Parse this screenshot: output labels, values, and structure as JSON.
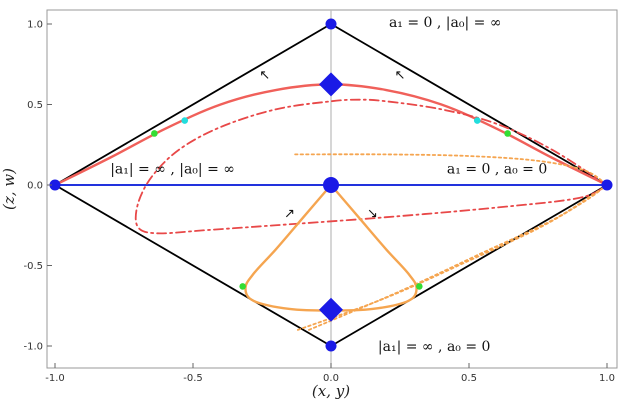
{
  "chart_data": {
    "type": "line",
    "xlabel": "(x, y)",
    "ylabel": "(z, w)",
    "xlim": [
      -1.05,
      1.05
    ],
    "ylim": [
      -1.08,
      1.08
    ],
    "x_ticks": [
      "-1.0",
      "-0.5",
      "0.0",
      "0.5",
      "1.0"
    ],
    "y_ticks": [
      "-1.0",
      "-0.5",
      "0.0",
      "0.5",
      "1.0"
    ],
    "grid": false,
    "reference_lines": {
      "vertical_x": 0.0,
      "color": "#bbbbbb"
    },
    "frame": {
      "name": "boundary",
      "color": "#000000",
      "points": [
        [
          0,
          1
        ],
        [
          1,
          0
        ],
        [
          0,
          -1
        ],
        [
          -1,
          0
        ],
        [
          0,
          1
        ]
      ]
    },
    "axis_line": {
      "name": "horizontal-axis-line",
      "color": "#2233dd",
      "points": [
        [
          -1,
          0
        ],
        [
          1,
          0
        ]
      ]
    },
    "series": [
      {
        "key": "red_solid",
        "color": "#f0605a",
        "style": "solid",
        "points": [
          [
            -1,
            0
          ],
          [
            -0.8,
            0.17
          ],
          [
            -0.6,
            0.35
          ],
          [
            -0.4,
            0.5
          ],
          [
            -0.2,
            0.59
          ],
          [
            0,
            0.625
          ],
          [
            0.2,
            0.59
          ],
          [
            0.4,
            0.5
          ],
          [
            0.6,
            0.35
          ],
          [
            0.8,
            0.17
          ],
          [
            1,
            0
          ]
        ]
      },
      {
        "key": "red_dashdot",
        "color": "#e84848",
        "style": "dashdot",
        "points": [
          [
            1,
            0
          ],
          [
            0.8,
            0.22
          ],
          [
            0.6,
            0.38
          ],
          [
            0.4,
            0.47
          ],
          [
            0.2,
            0.52
          ],
          [
            0.1,
            0.53
          ],
          [
            0,
            0.52
          ],
          [
            -0.2,
            0.47
          ],
          [
            -0.4,
            0.36
          ],
          [
            -0.55,
            0.22
          ],
          [
            -0.65,
            0.05
          ],
          [
            -0.7,
            -0.12
          ],
          [
            -0.7,
            -0.26
          ],
          [
            -0.63,
            -0.3
          ],
          [
            -0.45,
            -0.28
          ],
          [
            -0.2,
            -0.25
          ],
          [
            0.2,
            -0.2
          ],
          [
            0.6,
            -0.14
          ],
          [
            0.9,
            -0.08
          ],
          [
            1,
            0
          ]
        ]
      },
      {
        "key": "orange_solid",
        "color": "#f5a550",
        "style": "solid",
        "points": [
          [
            0,
            0
          ],
          [
            -0.1,
            -0.2
          ],
          [
            -0.2,
            -0.4
          ],
          [
            -0.28,
            -0.55
          ],
          [
            -0.31,
            -0.64
          ],
          [
            -0.28,
            -0.72
          ],
          [
            -0.15,
            -0.77
          ],
          [
            0,
            -0.78
          ],
          [
            0.15,
            -0.77
          ],
          [
            0.28,
            -0.72
          ],
          [
            0.31,
            -0.64
          ],
          [
            0.28,
            -0.55
          ],
          [
            0.2,
            -0.4
          ],
          [
            0.1,
            -0.2
          ],
          [
            0,
            0
          ]
        ]
      },
      {
        "key": "orange_dotted_upper",
        "color": "#f5a550",
        "style": "dotted",
        "points": [
          [
            -0.13,
            0.19
          ],
          [
            0.2,
            0.19
          ],
          [
            0.5,
            0.18
          ],
          [
            0.75,
            0.15
          ],
          [
            0.92,
            0.09
          ],
          [
            1,
            0
          ]
        ]
      },
      {
        "key": "orange_dotted_lower_a",
        "color": "#f5a550",
        "style": "dotted",
        "points": [
          [
            -0.12,
            -0.9
          ],
          [
            0.2,
            -0.7
          ],
          [
            0.5,
            -0.47
          ],
          [
            0.75,
            -0.27
          ],
          [
            0.92,
            -0.1
          ],
          [
            1,
            0
          ]
        ]
      },
      {
        "key": "orange_dotted_lower_b",
        "color": "#f5a550",
        "style": "dotted",
        "points": [
          [
            -0.08,
            -0.9
          ],
          [
            0.25,
            -0.66
          ],
          [
            0.55,
            -0.42
          ],
          [
            0.8,
            -0.22
          ],
          [
            0.94,
            -0.07
          ],
          [
            1,
            0
          ]
        ]
      }
    ],
    "points": [
      {
        "x": 0,
        "y": 1,
        "color": "#1a1ae6",
        "shape": "circle",
        "size": "small"
      },
      {
        "x": 0,
        "y": -1,
        "color": "#1a1ae6",
        "shape": "circle",
        "size": "small"
      },
      {
        "x": -1,
        "y": 0,
        "color": "#1a1ae6",
        "shape": "circle",
        "size": "small"
      },
      {
        "x": 1,
        "y": 0,
        "color": "#1a1ae6",
        "shape": "circle",
        "size": "small"
      },
      {
        "x": 0,
        "y": 0,
        "color": "#1a1ae6",
        "shape": "circle",
        "size": "large"
      },
      {
        "x": 0,
        "y": 0.625,
        "color": "#1a1ae6",
        "shape": "diamond",
        "size": "large"
      },
      {
        "x": 0,
        "y": -0.775,
        "color": "#1a1ae6",
        "shape": "diamond",
        "size": "large"
      },
      {
        "x": -0.64,
        "y": 0.32,
        "color": "#33dd33",
        "shape": "circle",
        "size": "tiny"
      },
      {
        "x": 0.64,
        "y": 0.32,
        "color": "#33dd33",
        "shape": "circle",
        "size": "tiny"
      },
      {
        "x": -0.53,
        "y": 0.4,
        "color": "#22dddd",
        "shape": "circle",
        "size": "tiny"
      },
      {
        "x": 0.53,
        "y": 0.4,
        "color": "#22dddd",
        "shape": "circle",
        "size": "tiny"
      },
      {
        "x": -0.32,
        "y": -0.63,
        "color": "#33dd33",
        "shape": "circle",
        "size": "tiny"
      },
      {
        "x": 0.32,
        "y": -0.63,
        "color": "#33dd33",
        "shape": "circle",
        "size": "tiny"
      }
    ],
    "annotations": [
      {
        "text": "a₁ = 0 , |a₀| = ∞",
        "x": 0.21,
        "y": 0.98
      },
      {
        "text": "|a₁| = ∞ , |a₀| = ∞",
        "x": -0.8,
        "y": 0.07
      },
      {
        "text": "a₁ = 0 , a₀ = 0",
        "x": 0.42,
        "y": 0.07
      },
      {
        "text": "|a₁| = ∞ , a₀ = 0",
        "x": 0.17,
        "y": -1.03
      }
    ],
    "direction_arrows": [
      {
        "glyph": "↖",
        "x": -0.24,
        "y": 0.68
      },
      {
        "glyph": "↖",
        "x": 0.25,
        "y": 0.68
      },
      {
        "glyph": "↗",
        "x": -0.15,
        "y": -0.18
      },
      {
        "glyph": "↘",
        "x": 0.15,
        "y": -0.18
      }
    ]
  }
}
